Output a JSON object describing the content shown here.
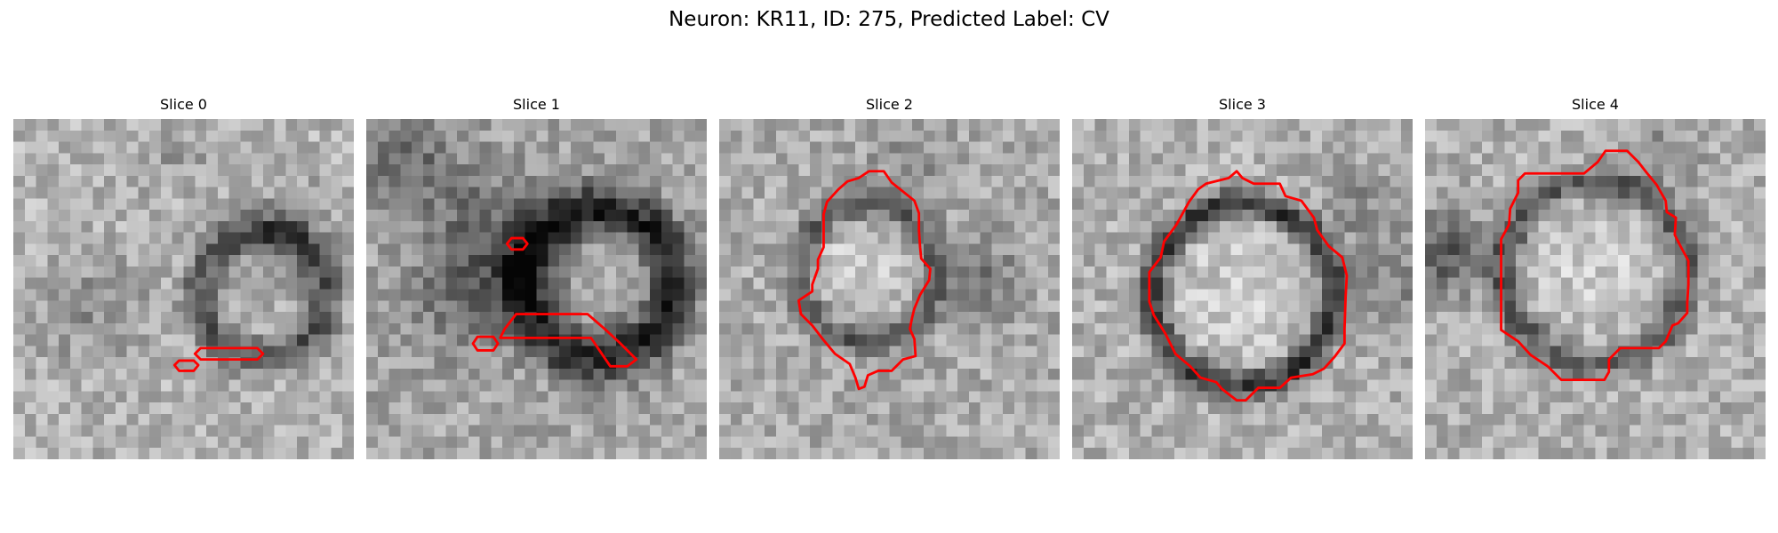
{
  "figure": {
    "title": "Neuron: KR11, ID: 275, Predicted Label: CV"
  },
  "panels": [
    {
      "title": "Slice 0"
    },
    {
      "title": "Slice 1"
    },
    {
      "title": "Slice 2"
    },
    {
      "title": "Slice 3"
    },
    {
      "title": "Slice 4"
    }
  ],
  "contour_color": "#ff0000",
  "image_colormap": "gray"
}
